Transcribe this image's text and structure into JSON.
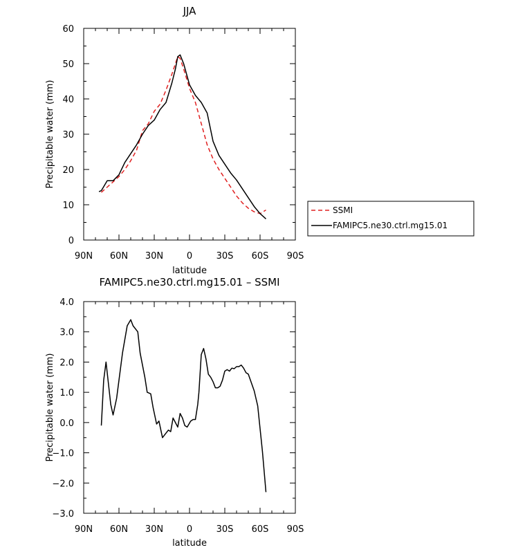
{
  "chart_data": [
    {
      "type": "line",
      "title": "JJA",
      "xlabel": "latitude",
      "ylabel": "Precipitable water (mm)",
      "xlim": [
        90,
        -90
      ],
      "ylim": [
        0,
        60
      ],
      "x_tick_values": [
        90,
        60,
        30,
        0,
        -30,
        -60,
        -90
      ],
      "x_tick_labels": [
        "90N",
        "60N",
        "30N",
        "0",
        "30S",
        "60S",
        "90S"
      ],
      "y_tick_values": [
        0,
        10,
        20,
        30,
        40,
        50,
        60
      ],
      "y_tick_labels": [
        "0",
        "10",
        "20",
        "30",
        "40",
        "50",
        "60"
      ],
      "legend": {
        "position": "right"
      },
      "series": [
        {
          "name": "SSMI",
          "color": "#e02020",
          "dash": "dashed",
          "x": [
            75,
            70,
            65,
            60,
            55,
            50,
            45,
            40,
            35,
            30,
            25,
            20,
            15,
            12,
            10,
            8,
            5,
            0,
            -5,
            -10,
            -15,
            -20,
            -25,
            -30,
            -35,
            -40,
            -45,
            -50,
            -55,
            -60,
            -65
          ],
          "y": [
            13.5,
            15,
            16.5,
            18,
            20,
            22.5,
            25.5,
            31,
            33,
            36.5,
            38.5,
            42.5,
            47,
            50,
            52,
            51.5,
            48.5,
            43,
            39,
            33,
            27,
            23,
            20,
            17.5,
            15,
            12.5,
            10.5,
            9,
            8,
            7.5,
            8.5
          ]
        },
        {
          "name": "FAMIPC5.ne30.ctrl.mg15.01",
          "color": "#000000",
          "dash": "solid",
          "x": [
            77,
            75,
            70,
            65,
            60,
            55,
            50,
            45,
            40,
            35,
            30,
            25,
            20,
            15,
            12,
            10,
            8,
            5,
            0,
            -5,
            -10,
            -15,
            -20,
            -25,
            -30,
            -35,
            -40,
            -45,
            -50,
            -55,
            -60,
            -65
          ],
          "y": [
            13.7,
            14,
            16.8,
            16.8,
            18.5,
            22,
            24.5,
            27,
            30,
            32.5,
            34,
            37,
            39,
            44.5,
            48.5,
            52,
            52.5,
            50,
            44,
            41,
            39,
            36,
            28,
            24,
            21.5,
            19,
            17,
            14.5,
            12,
            9.5,
            7.5,
            6
          ]
        }
      ]
    },
    {
      "type": "line",
      "title": "FAMIPC5.ne30.ctrl.mg15.01 – SSMI",
      "xlabel": "latitude",
      "ylabel": "Precipitable water (mm)",
      "xlim": [
        90,
        -90
      ],
      "ylim": [
        -3.0,
        4.0
      ],
      "x_tick_values": [
        90,
        60,
        30,
        0,
        -30,
        -60,
        -90
      ],
      "x_tick_labels": [
        "90N",
        "60N",
        "30N",
        "0",
        "30S",
        "60S",
        "90S"
      ],
      "y_tick_values": [
        -3,
        -2,
        -1,
        0,
        1,
        2,
        3,
        4
      ],
      "y_tick_labels": [
        "−3.0",
        "−2.0",
        "−1.0",
        "0.0",
        "1.0",
        "2.0",
        "3.0",
        "4.0"
      ],
      "series": [
        {
          "color": "#000000",
          "dash": "solid",
          "x": [
            75,
            73,
            71,
            67,
            65,
            62,
            59,
            57,
            55,
            53,
            50,
            48,
            44,
            42,
            40,
            38,
            36,
            33,
            31,
            28,
            26,
            23,
            21,
            18,
            16,
            14,
            12,
            10,
            8,
            6,
            4,
            2,
            -1,
            -3,
            -5,
            -7,
            -8,
            -10,
            -12,
            -14,
            -16,
            -18,
            -20,
            -22,
            -24,
            -26,
            -28,
            -30,
            -32,
            -34,
            -36,
            -38,
            -40,
            -42,
            -44,
            -46,
            -48,
            -50,
            -55,
            -58,
            -62,
            -65
          ],
          "y": [
            -0.1,
            1.4,
            2.0,
            0.6,
            0.25,
            0.8,
            1.7,
            2.3,
            2.75,
            3.2,
            3.4,
            3.2,
            3.0,
            2.3,
            1.9,
            1.5,
            1.0,
            0.95,
            0.5,
            -0.05,
            0.05,
            -0.5,
            -0.4,
            -0.25,
            -0.3,
            0.15,
            0.0,
            -0.15,
            0.3,
            0.15,
            -0.1,
            -0.15,
            0.05,
            0.1,
            0.1,
            0.6,
            1.0,
            2.25,
            2.45,
            2.1,
            1.6,
            1.5,
            1.35,
            1.15,
            1.15,
            1.2,
            1.4,
            1.7,
            1.75,
            1.7,
            1.8,
            1.78,
            1.85,
            1.85,
            1.9,
            1.8,
            1.65,
            1.6,
            1.05,
            0.55,
            -0.95,
            -2.3
          ]
        }
      ]
    }
  ]
}
